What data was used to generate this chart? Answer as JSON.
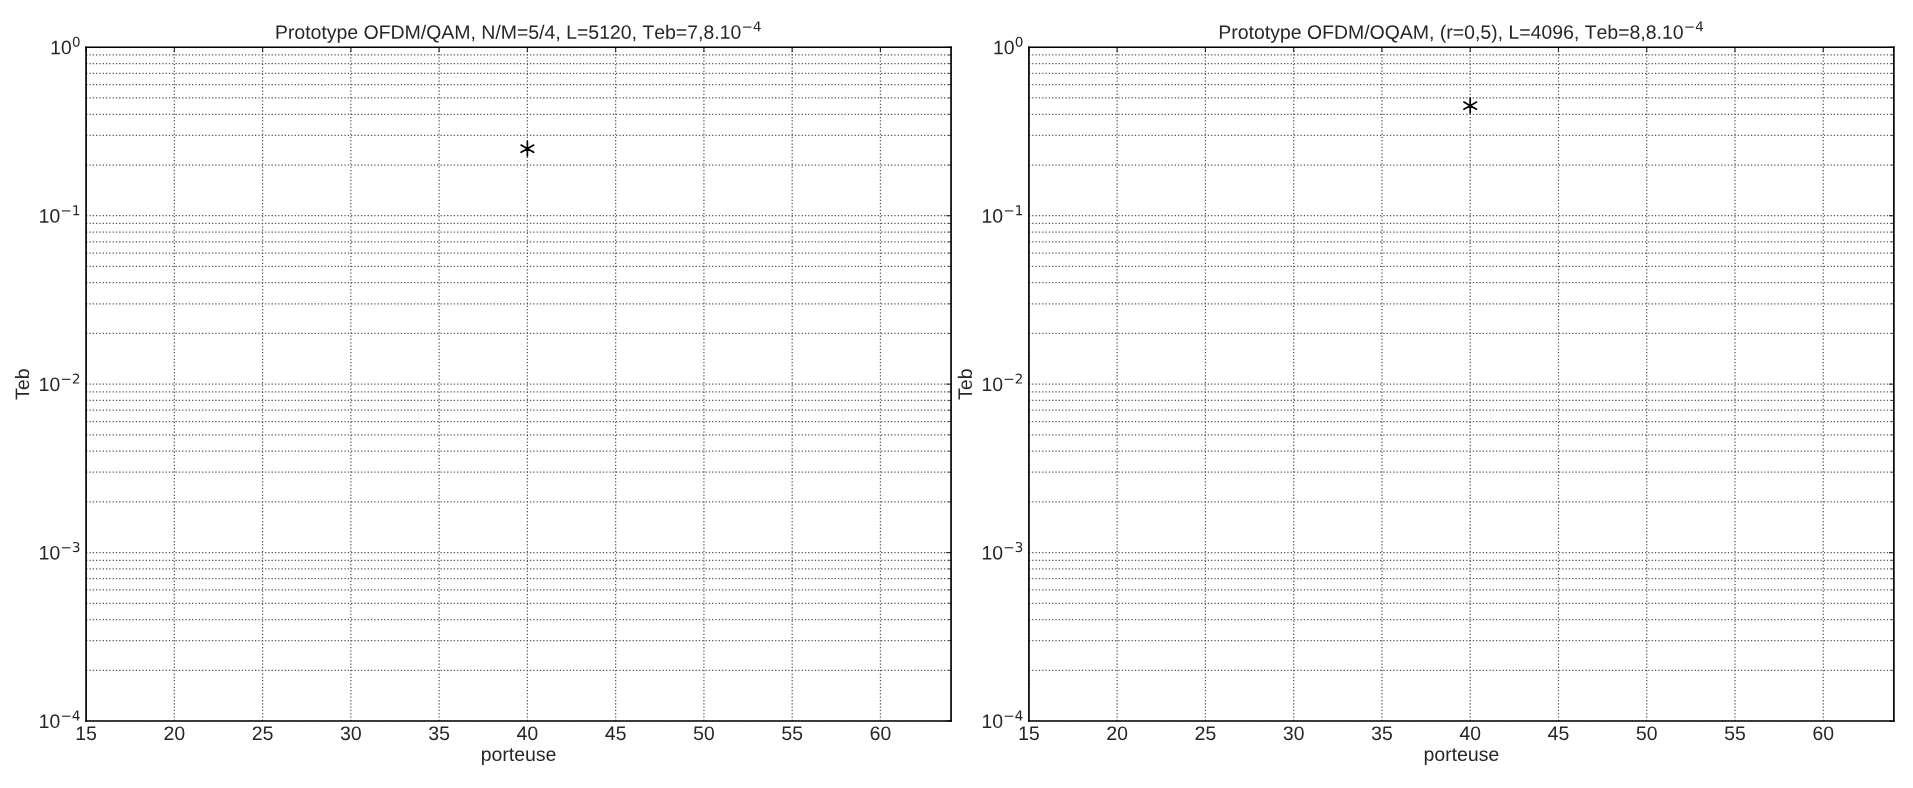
{
  "chart_data": [
    {
      "type": "scatter",
      "title": "Prototype OFDM/QAM, N/M=5/4, L=5120, Teb=7,8.10$^{−4}$",
      "xlabel": "porteuse",
      "ylabel": "Teb",
      "x": [
        40
      ],
      "series": [
        {
          "color": "#000000",
          "values": [
            0.25
          ]
        }
      ],
      "marker": "cross",
      "log": "y",
      "grid": true,
      "xlim": [
        15,
        64
      ],
      "xticks": [
        15,
        20,
        25,
        30,
        35,
        40,
        45,
        50,
        55,
        60
      ],
      "ylim": [
        0.0001,
        1
      ],
      "yticks": [
        {
          "value": 0.0001,
          "label": "10$^{−4}$"
        },
        {
          "value": 0.001,
          "label": "10$^{−3}$"
        },
        {
          "value": 0.01,
          "label": "10$^{−2}$"
        },
        {
          "value": 0.1,
          "label": "10$^{−1}$"
        },
        {
          "value": 1,
          "label": "10$^{0}$"
        }
      ]
    },
    {
      "type": "scatter",
      "title": "Prototype OFDM/OQAM, (r=0,5), L=4096, Teb=8,8.10$^{−4}$",
      "xlabel": "porteuse",
      "ylabel": "Teb",
      "x": [
        40
      ],
      "series": [
        {
          "color": "#000000",
          "values": [
            0.45
          ]
        }
      ],
      "marker": "cross",
      "log": "y",
      "grid": true,
      "xlim": [
        15,
        64
      ],
      "xticks": [
        15,
        20,
        25,
        30,
        35,
        40,
        45,
        50,
        55,
        60
      ],
      "ylim": [
        0.0001,
        1
      ],
      "yticks": [
        {
          "value": 0.0001,
          "label": "10$^{−4}$"
        },
        {
          "value": 0.001,
          "label": "10$^{−3}$"
        },
        {
          "value": 0.01,
          "label": "10$^{−2}$"
        },
        {
          "value": 0.1,
          "label": "10$^{−1}$"
        },
        {
          "value": 1,
          "label": "10$^{0}$"
        }
      ]
    }
  ]
}
